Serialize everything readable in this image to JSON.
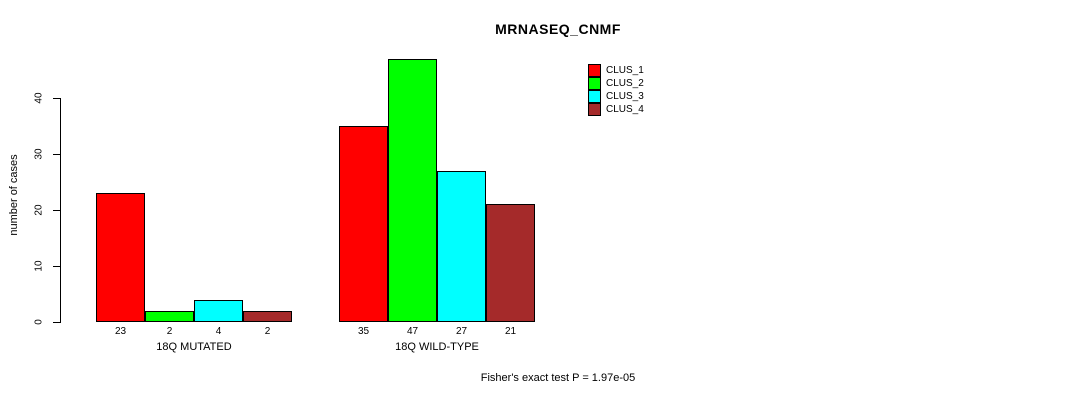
{
  "title": "MRNASEQ_CNMF",
  "footer": "Fisher's exact test P = 1.97e-05",
  "chart_data": {
    "type": "bar",
    "title": "MRNASEQ_CNMF",
    "xlabel": "",
    "ylabel": "number of cases",
    "ylim": [
      0,
      47
    ],
    "yticks": [
      0,
      10,
      20,
      30,
      40
    ],
    "grid": false,
    "legend_position": "top-right",
    "categories": [
      "18Q MUTATED",
      "18Q WILD-TYPE"
    ],
    "series": [
      {
        "name": "CLUS_1",
        "color": "#ff0000",
        "values": [
          23,
          35
        ]
      },
      {
        "name": "CLUS_2",
        "color": "#00ff00",
        "values": [
          2,
          47
        ]
      },
      {
        "name": "CLUS_3",
        "color": "#00ffff",
        "values": [
          4,
          27
        ]
      },
      {
        "name": "CLUS_4",
        "color": "#a52a2a",
        "values": [
          2,
          21
        ]
      }
    ],
    "bar_value_labels": [
      [
        23,
        2,
        4,
        2
      ],
      [
        35,
        47,
        27,
        21
      ]
    ],
    "annotation": "Fisher's exact test P = 1.97e-05",
    "axis_color": "#000000",
    "bar_border_color": "#000000"
  }
}
